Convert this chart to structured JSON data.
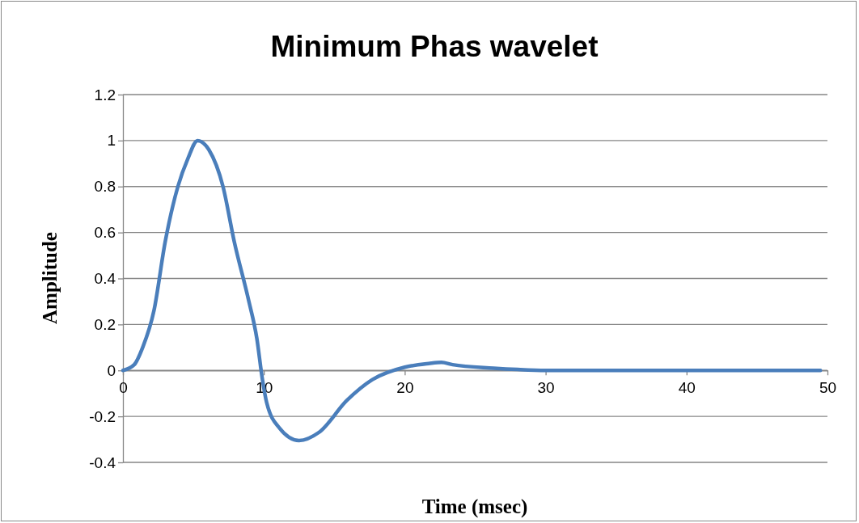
{
  "chart_data": {
    "type": "line",
    "title": "Minimum Phas wavelet",
    "xlabel": "Time (msec)",
    "ylabel": "Amplitude",
    "xlim": [
      0,
      50
    ],
    "xticks": [
      0,
      10,
      20,
      30,
      40,
      50
    ],
    "ylim": [
      -0.4,
      1.2
    ],
    "yticks": [
      -0.4,
      -0.2,
      0,
      0.2,
      0.4,
      0.6,
      0.8,
      1,
      1.2
    ],
    "grid": "y",
    "series": [
      {
        "color": "#4a7ebb",
        "x": [
          0,
          0.8,
          1.4,
          2.2,
          3,
          3.9,
          4.6,
          5.3,
          6.1,
          7.1,
          7.9,
          8.9,
          9.5,
          9.9,
          10.2,
          11.1,
          12.5,
          13.9,
          15.9,
          17.7,
          20,
          21.7,
          22.6,
          23.4,
          26.3,
          28,
          30,
          35,
          40,
          45,
          49.5
        ],
        "values": [
          0,
          0.025,
          0.1,
          0.26,
          0.56,
          0.8,
          0.92,
          1,
          0.96,
          0.8,
          0.56,
          0.31,
          0.14,
          -0.04,
          -0.14,
          -0.25,
          -0.305,
          -0.27,
          -0.13,
          -0.04,
          0.014,
          0.03,
          0.035,
          0.025,
          0.01,
          0.004,
          0,
          0,
          0,
          0,
          0
        ]
      }
    ]
  }
}
